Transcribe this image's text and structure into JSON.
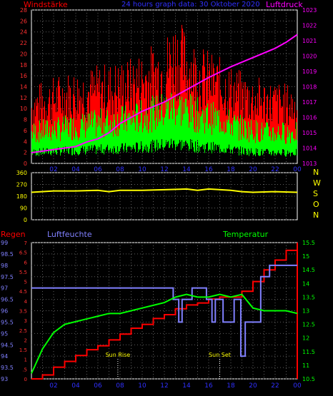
{
  "header": {
    "left_title": "Windstärke",
    "center_title": "24 hours graph data: 30 Oktober 2020",
    "right_title": "Luftdruck"
  },
  "colors": {
    "background": "#000000",
    "grid": "#606060",
    "wind_max": "#ff0000",
    "wind_avg": "#00ff00",
    "pressure": "#ff00ff",
    "direction": "#ffff00",
    "rain": "#ff0000",
    "humidity": "#8080ff",
    "temperature": "#00ff00",
    "sun_marker": "#ffffff",
    "title": "#3030ff"
  },
  "x_ticks": [
    "02",
    "04",
    "06",
    "08",
    "10",
    "12",
    "14",
    "16",
    "18",
    "20",
    "22",
    "00"
  ],
  "panel_wind": {
    "left_ticks": [
      "0",
      "2",
      "4",
      "6",
      "8",
      "10",
      "12",
      "14",
      "16",
      "18",
      "20",
      "22",
      "24",
      "26",
      "28"
    ],
    "right_ticks": [
      "1013",
      "1014",
      "1015",
      "1016",
      "1017",
      "1018",
      "1019",
      "1020",
      "1021",
      "1022",
      "1023"
    ]
  },
  "panel_direction": {
    "left_ticks": [
      "0",
      "90",
      "180",
      "270",
      "360"
    ],
    "right_labels": [
      "N",
      "W",
      "S",
      "O",
      "N"
    ]
  },
  "panel_climate": {
    "rain_label": "Regen",
    "humidity_label": "Luftfeuchte",
    "temperature_label": "Temperatur",
    "humidity_ticks": [
      "93",
      "93.5",
      "94",
      "94.5",
      "95",
      "95.5",
      "96",
      "96.5",
      "97",
      "97.5",
      "98",
      "98.5",
      "99"
    ],
    "rain_ticks": [
      "0",
      ".5",
      "1",
      "1.5",
      "2",
      "2.5",
      "3",
      "3.5",
      "4",
      "4.5",
      "5",
      "5.5",
      "6",
      "6.5",
      "7"
    ],
    "temperature_ticks": [
      "10.5",
      "11",
      "11.5",
      "12",
      "12.5",
      "13",
      "13.5",
      "14",
      "14.5",
      "15",
      "15.5"
    ],
    "sun_rise_label": "Sun Rise",
    "sun_set_label": "Sun Set"
  },
  "chart_data": [
    {
      "type": "line",
      "name_left": "Windstärke",
      "name_right": "Luftdruck",
      "x_range_hours": [
        0,
        24
      ],
      "ylim_left": [
        0,
        28
      ],
      "ylim_right": [
        1013,
        1023
      ],
      "wind_max_profile": {
        "x": [
          0,
          3,
          6,
          9,
          12,
          13,
          15,
          17,
          19,
          21,
          24
        ],
        "y": [
          11,
          13,
          14,
          15,
          18,
          21,
          17,
          15,
          13,
          12,
          11
        ]
      },
      "wind_avg_profile": {
        "x": [
          0,
          3,
          6,
          9,
          12,
          13,
          15,
          17,
          19,
          21,
          24
        ],
        "y": [
          7,
          8,
          9,
          10,
          12,
          13,
          11,
          10,
          8,
          7,
          7
        ]
      },
      "pressure": {
        "x": [
          0,
          2,
          4,
          5,
          6,
          7,
          8,
          10,
          12,
          14,
          16,
          18,
          20,
          22,
          23,
          24
        ],
        "y": [
          1013.7,
          1013.9,
          1014.1,
          1014.4,
          1014.6,
          1015.0,
          1015.6,
          1016.4,
          1017.0,
          1017.8,
          1018.6,
          1019.3,
          1019.9,
          1020.5,
          1020.9,
          1021.4
        ]
      },
      "grid": true
    },
    {
      "type": "line",
      "x_range_hours": [
        0,
        24
      ],
      "ylim": [
        0,
        360
      ],
      "wind_direction": {
        "x": [
          0,
          2,
          4,
          6,
          7,
          8,
          10,
          12,
          14,
          15,
          16,
          18,
          19,
          20,
          22,
          24
        ],
        "y": [
          210,
          220,
          220,
          225,
          215,
          225,
          225,
          230,
          235,
          225,
          235,
          225,
          215,
          210,
          215,
          210
        ]
      },
      "grid": true
    },
    {
      "type": "line",
      "x_range_hours": [
        0,
        24
      ],
      "ylim_humidity": [
        93,
        99
      ],
      "ylim_rain": [
        0,
        7
      ],
      "ylim_temperature": [
        10.5,
        15.5
      ],
      "rain": {
        "x": [
          0,
          1,
          2,
          3,
          4,
          5,
          6,
          7,
          8,
          9,
          10,
          11,
          12,
          13,
          14,
          15,
          16,
          17,
          18,
          19,
          20,
          21,
          22,
          23,
          24
        ],
        "y": [
          0,
          0.2,
          0.6,
          0.9,
          1.2,
          1.5,
          1.7,
          2.0,
          2.3,
          2.6,
          2.8,
          3.1,
          3.3,
          3.6,
          3.8,
          3.9,
          4.1,
          4.2,
          4.2,
          4.5,
          5.0,
          5.6,
          6.1,
          6.6,
          7.0
        ]
      },
      "humidity": {
        "x": [
          0,
          12.8,
          12.8,
          13.3,
          13.3,
          13.6,
          13.6,
          14.5,
          14.5,
          15.8,
          15.8,
          16.3,
          16.3,
          16.6,
          16.6,
          17.3,
          17.3,
          17.6,
          17.6,
          18.3,
          18.3,
          18.9,
          18.9,
          19.3,
          19.3,
          20.7,
          20.7,
          21.5,
          21.5,
          24
        ],
        "y": [
          97,
          97,
          96.5,
          96.5,
          95.5,
          95.5,
          96.5,
          96.5,
          97,
          97,
          96.5,
          96.5,
          95.5,
          95.5,
          96.5,
          96.5,
          95.5,
          95.5,
          95.5,
          95.5,
          96.5,
          96.5,
          94,
          94,
          95.5,
          95.5,
          97.5,
          97.5,
          98,
          98
        ]
      },
      "temperature": {
        "x": [
          0,
          1,
          2,
          3,
          4,
          5,
          6,
          7,
          8,
          9,
          10,
          11,
          12,
          13,
          14,
          15,
          16,
          17,
          18,
          19,
          20,
          21,
          22,
          23,
          24
        ],
        "y": [
          10.7,
          11.6,
          12.2,
          12.5,
          12.6,
          12.7,
          12.8,
          12.9,
          12.9,
          13.0,
          13.1,
          13.2,
          13.3,
          13.5,
          13.6,
          13.5,
          13.5,
          13.6,
          13.5,
          13.6,
          13.1,
          13.0,
          13.0,
          13.0,
          12.9
        ]
      },
      "sun_rise_hour": 7.8,
      "sun_set_hour": 17.0,
      "grid": true
    }
  ]
}
